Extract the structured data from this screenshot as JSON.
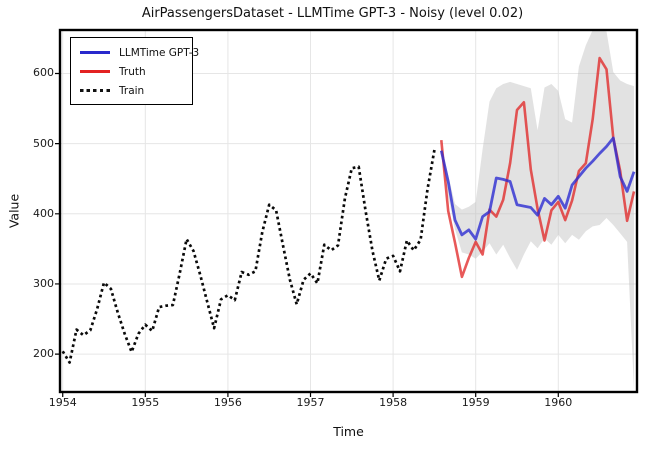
{
  "title": "AirPassengersDataset - LLMTime GPT-3 - Noisy (level 0.02)",
  "legend": {
    "position": "upper left",
    "items": [
      {
        "label": "LLMTime GPT-3",
        "color": "#2929cc",
        "style": "solid"
      },
      {
        "label": "Truth",
        "color": "#e32222",
        "style": "solid"
      },
      {
        "label": "Train",
        "color": "#111111",
        "style": "dashed"
      }
    ]
  },
  "chart_data": {
    "type": "line",
    "title": "AirPassengersDataset - LLMTime GPT-3 - Noisy (level 0.02)",
    "xlabel": "Time",
    "ylabel": "Value",
    "xlim": [
      1953.967,
      1960.953
    ],
    "ylim": [
      146,
      662
    ],
    "x_ticks": [
      1954,
      1955,
      1956,
      1957,
      1958,
      1959,
      1960
    ],
    "y_ticks": [
      200,
      300,
      400,
      500,
      600
    ],
    "grid": true,
    "grid_color": "#e6e6e6",
    "frame_color": "#000000",
    "band": {
      "name": "confidence-band",
      "x_start": 1958.583333,
      "x_step": 0.083333,
      "color": "#bfbfbf",
      "opacity": 0.45,
      "upper": [
        497,
        455,
        414,
        406,
        410,
        417,
        492,
        560,
        579,
        585,
        588,
        585,
        582,
        579,
        519,
        580,
        585,
        575,
        535,
        530,
        610,
        640,
        662,
        662,
        660,
        602,
        590,
        585,
        582
      ],
      "lower": [
        483,
        425,
        378,
        345,
        342,
        336,
        346,
        358,
        342,
        356,
        337,
        320,
        342,
        361,
        351,
        365,
        356,
        370,
        358,
        370,
        363,
        375,
        382,
        384,
        394,
        384,
        372,
        360,
        150
      ]
    },
    "series": [
      {
        "name": "Train",
        "style": "dashed",
        "color": "#0a0a0a",
        "opacity": 1,
        "width": 2.7,
        "x_start": 1954.0,
        "x_step": 0.083333,
        "values": [
          204,
          188,
          235,
          227,
          234,
          264,
          302,
          293,
          259,
          229,
          203,
          229,
          242,
          233,
          267,
          269,
          270,
          315,
          364,
          347,
          312,
          274,
          237,
          278,
          284,
          277,
          317,
          313,
          318,
          374,
          413,
          405,
          355,
          306,
          271,
          306,
          315,
          301,
          356,
          348,
          355,
          422,
          465,
          467,
          404,
          347,
          305,
          336,
          340,
          318,
          362,
          348,
          363,
          435,
          491
        ]
      },
      {
        "name": "Truth",
        "style": "solid",
        "color": "#e02222",
        "opacity": 0.75,
        "width": 2.6,
        "x_start": 1958.583333,
        "x_step": 0.083333,
        "values": [
          505,
          404,
          359,
          310,
          337,
          360,
          342,
          406,
          396,
          420,
          472,
          548,
          559,
          463,
          407,
          362,
          405,
          417,
          391,
          419,
          461,
          472,
          535,
          622,
          606,
          508,
          461,
          390,
          432
        ]
      },
      {
        "name": "LLMTime GPT-3",
        "style": "solid",
        "color": "#2d2dd2",
        "opacity": 0.8,
        "width": 2.8,
        "x_start": 1958.583333,
        "x_step": 0.083333,
        "values": [
          490,
          446,
          391,
          370,
          377,
          364,
          396,
          403,
          451,
          449,
          446,
          413,
          411,
          409,
          398,
          422,
          413,
          425,
          408,
          441,
          453,
          465,
          475,
          486,
          496,
          508,
          453,
          432,
          460
        ]
      }
    ]
  }
}
